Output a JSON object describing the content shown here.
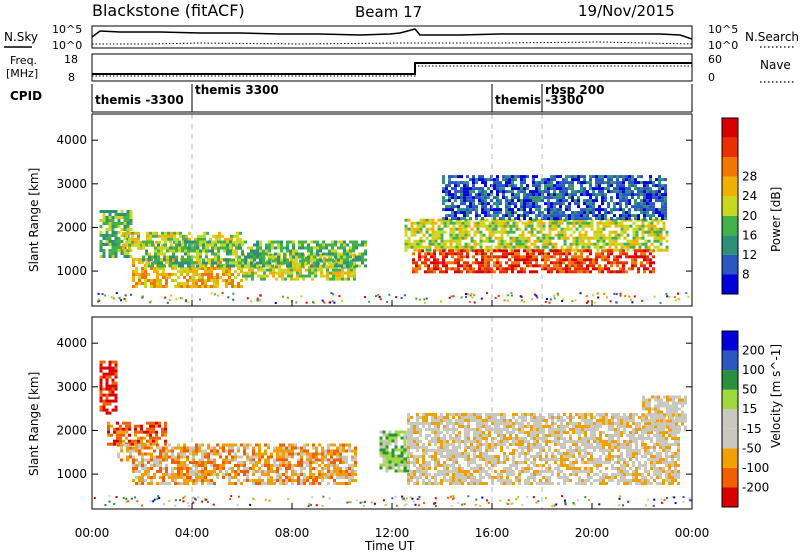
{
  "header": {
    "title": "Blackstone (fitACF)",
    "beam": "Beam 17",
    "date": "19/Nov/2015"
  },
  "top_panel": {
    "left_label": "N.Sky",
    "right_label": "N.Search",
    "left_ticks": [
      "10^5",
      "10^0"
    ],
    "right_ticks": [
      "10^5",
      "10^0"
    ]
  },
  "freq_panel": {
    "left_label_1": "Freq.",
    "left_label_2": "[MHz]",
    "right_label": "Nave",
    "left_ticks": [
      "18",
      "8"
    ],
    "right_ticks": [
      "60",
      "0"
    ]
  },
  "cpid_panel": {
    "label": "CPID",
    "programs": [
      {
        "name": "themis -3300",
        "start_hour": 0
      },
      {
        "name": "themis 3300",
        "start_hour": 4
      },
      {
        "name": "themis -3300",
        "start_hour": 16
      },
      {
        "name": "rbsp 200",
        "start_hour": 18
      }
    ]
  },
  "colors": {
    "power_scale": [
      "#0000d8",
      "#2a58c0",
      "#2e9078",
      "#44b04a",
      "#c8d820",
      "#f0b000",
      "#f07800",
      "#e83000",
      "#d80000"
    ],
    "velocity_scale": [
      "#d80000",
      "#f06000",
      "#f0a000",
      "#c8c8c0",
      "#c8c8c0",
      "#a0d840",
      "#2a9040",
      "#2a58c0",
      "#0000d8"
    ],
    "background_grey": "#c8c8c0"
  },
  "chart_data": [
    {
      "type": "heatmap",
      "panel": "power",
      "ylabel": "Slant Range [km]",
      "yticks": [
        1000,
        2000,
        3000,
        4000
      ],
      "ylim": [
        200,
        4600
      ],
      "xlim": [
        0,
        24
      ],
      "colorbar_label": "Power [dB]",
      "colorbar_ticks": [
        "8",
        "12",
        "16",
        "20",
        "24",
        "28"
      ],
      "colorbar_range": [
        0,
        32
      ],
      "bands": [
        {
          "t0": 0.3,
          "t1": 1.6,
          "r0": 1300,
          "r1": 2400,
          "level": 3
        },
        {
          "t0": 1.2,
          "t1": 6.0,
          "r0": 1500,
          "r1": 1900,
          "level": 4
        },
        {
          "t0": 1.6,
          "t1": 6.0,
          "r0": 650,
          "r1": 1300,
          "level": 5
        },
        {
          "t0": 6.0,
          "t1": 10.5,
          "r0": 800,
          "r1": 1400,
          "level": 4
        },
        {
          "t0": 2.0,
          "t1": 11.0,
          "r0": 1100,
          "r1": 1700,
          "level": 3
        },
        {
          "t0": 12.5,
          "t1": 23.0,
          "r0": 1500,
          "r1": 2200,
          "level": 4
        },
        {
          "t0": 12.8,
          "t1": 22.5,
          "r0": 950,
          "r1": 1500,
          "level": 7
        },
        {
          "t0": 14.0,
          "t1": 23.0,
          "r0": 2200,
          "r1": 3200,
          "level": 1
        }
      ]
    },
    {
      "type": "heatmap",
      "panel": "velocity",
      "ylabel": "Slant Range [km]",
      "yticks": [
        1000,
        2000,
        3000,
        4000
      ],
      "ylim": [
        200,
        4600
      ],
      "xlim": [
        0,
        24
      ],
      "colorbar_label": "Velocity [m s^-1]",
      "colorbar_ticks": [
        "200",
        "100",
        "50",
        "15",
        "-15",
        "-50",
        "-100",
        "-200"
      ],
      "bands": [
        {
          "t0": 0.3,
          "t1": 1.0,
          "r0": 2400,
          "r1": 3600,
          "level": 0
        },
        {
          "t0": 0.6,
          "t1": 3.0,
          "r0": 1700,
          "r1": 2200,
          "level": 1
        },
        {
          "t0": 1.0,
          "t1": 10.5,
          "r0": 1300,
          "r1": 1700,
          "level": 2
        },
        {
          "t0": 1.6,
          "t1": 10.5,
          "r0": 750,
          "r1": 1300,
          "level": 2
        },
        {
          "t0": 11.5,
          "t1": 12.6,
          "r0": 1100,
          "r1": 2000,
          "level": 5
        },
        {
          "t0": 12.6,
          "t1": 23.5,
          "r0": 800,
          "r1": 2400,
          "level": 3
        },
        {
          "t0": 22.0,
          "t1": 23.8,
          "r0": 2000,
          "r1": 2800,
          "level": 3
        }
      ]
    }
  ],
  "xaxis": {
    "ticks": [
      "00:00",
      "04:00",
      "08:00",
      "12:00",
      "16:00",
      "20:00",
      "00:00"
    ],
    "label": "Time UT"
  }
}
